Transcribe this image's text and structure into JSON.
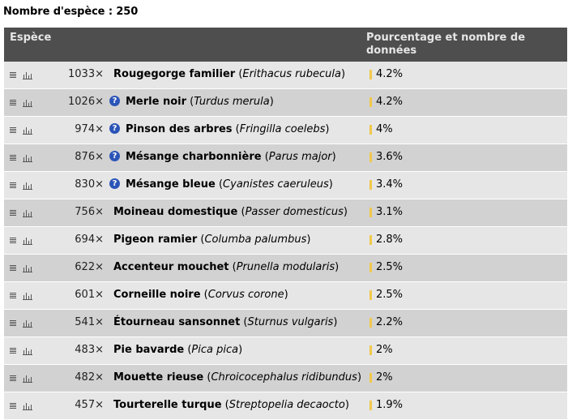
{
  "summary": {
    "label": "Nombre d'espèce : 250"
  },
  "table": {
    "col_species": "Espèce",
    "col_pct": "Pourcentage et nombre de données",
    "rows": [
      {
        "count": "1033×",
        "info": false,
        "common": "Rougegorge familier",
        "latin": "Erithacus rubecula",
        "pct": "4.2%"
      },
      {
        "count": "1026×",
        "info": true,
        "common": "Merle noir",
        "latin": "Turdus merula",
        "pct": "4.2%"
      },
      {
        "count": "974×",
        "info": true,
        "common": "Pinson des arbres",
        "latin": "Fringilla coelebs",
        "pct": "4%"
      },
      {
        "count": "876×",
        "info": true,
        "common": "Mésange charbonnière",
        "latin": "Parus major",
        "pct": "3.6%"
      },
      {
        "count": "830×",
        "info": true,
        "common": "Mésange bleue",
        "latin": "Cyanistes caeruleus",
        "pct": "3.4%"
      },
      {
        "count": "756×",
        "info": false,
        "common": "Moineau domestique",
        "latin": "Passer domesticus",
        "pct": "3.1%"
      },
      {
        "count": "694×",
        "info": false,
        "common": "Pigeon ramier",
        "latin": "Columba palumbus",
        "pct": "2.8%"
      },
      {
        "count": "622×",
        "info": false,
        "common": "Accenteur mouchet",
        "latin": "Prunella modularis",
        "pct": "2.5%"
      },
      {
        "count": "601×",
        "info": false,
        "common": "Corneille noire",
        "latin": "Corvus corone",
        "pct": "2.5%"
      },
      {
        "count": "541×",
        "info": false,
        "common": "Étourneau sansonnet",
        "latin": "Sturnus vulgaris",
        "pct": "2.2%"
      },
      {
        "count": "483×",
        "info": false,
        "common": "Pie bavarde",
        "latin": "Pica pica",
        "pct": "2%"
      },
      {
        "count": "482×",
        "info": false,
        "common": "Mouette rieuse",
        "latin": "Chroicocephalus ridibundus",
        "pct": "2%"
      },
      {
        "count": "457×",
        "info": false,
        "common": "Tourterelle turque",
        "latin": "Streptopelia decaocto",
        "pct": "1.9%"
      }
    ]
  },
  "colors": {
    "header_bg": "#4e4e4e",
    "row_light": "#e6e6e6",
    "row_dark": "#d2d2d2",
    "bar": "#f2c84b",
    "info": "#2b54b8"
  }
}
